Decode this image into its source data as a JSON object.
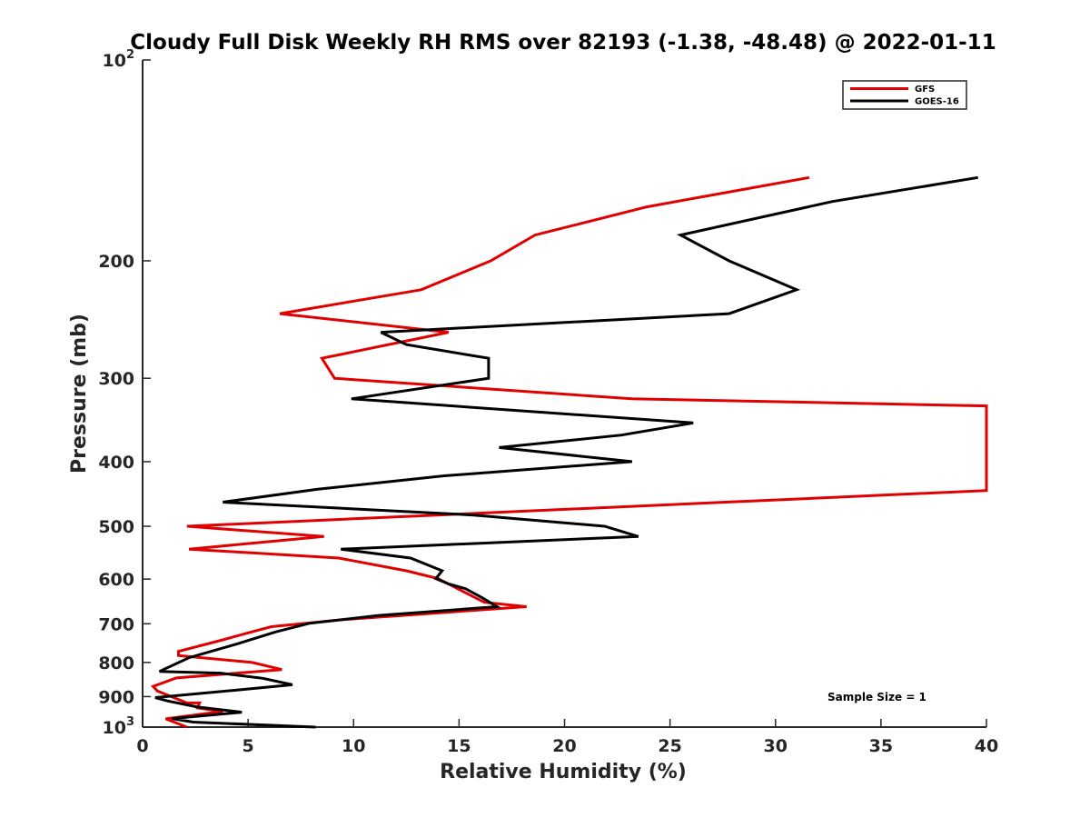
{
  "chart_data": {
    "type": "line",
    "title": "Cloudy Full Disk Weekly RH RMS over 82193 (-1.38, -48.48) @ 2022-01-11",
    "xlabel": "Relative Humidity (%)",
    "ylabel": "Pressure (mb)",
    "xlim": [
      0,
      40
    ],
    "ylim": [
      100,
      1000
    ],
    "y_scale": "log",
    "y_reversed": true,
    "grid": false,
    "legend_position": "top-right",
    "x_ticks": [
      "0",
      "5",
      "10",
      "15",
      "20",
      "25",
      "30",
      "35",
      "40"
    ],
    "y_ticks": [
      {
        "value": 100,
        "base": "10",
        "exp": "2"
      },
      {
        "value": 200,
        "label": "200"
      },
      {
        "value": 300,
        "label": "300"
      },
      {
        "value": 400,
        "label": "400"
      },
      {
        "value": 500,
        "label": "500"
      },
      {
        "value": 600,
        "label": "600"
      },
      {
        "value": 700,
        "label": "700"
      },
      {
        "value": 800,
        "label": "800"
      },
      {
        "value": 900,
        "label": "900"
      },
      {
        "value": 1000,
        "base": "10",
        "exp": "3"
      }
    ],
    "annotation": "Sample Size = 1",
    "series": [
      {
        "name": "GFS",
        "color": "#e00000",
        "points": [
          [
            31.6,
            150
          ],
          [
            23.9,
            166
          ],
          [
            18.6,
            183
          ],
          [
            16.5,
            200
          ],
          [
            13.2,
            221
          ],
          [
            6.5,
            240
          ],
          [
            14.5,
            256
          ],
          [
            8.5,
            280
          ],
          [
            9.1,
            300
          ],
          [
            23.2,
            322
          ],
          [
            40,
            330
          ],
          [
            40,
            442
          ],
          [
            2.1,
            500
          ],
          [
            8.6,
            518
          ],
          [
            2.2,
            541
          ],
          [
            9.3,
            558
          ],
          [
            12.5,
            583
          ],
          [
            14,
            599
          ],
          [
            16.2,
            650
          ],
          [
            18.2,
            660
          ],
          [
            9.5,
            690
          ],
          [
            6.1,
            707
          ],
          [
            5.3,
            718
          ],
          [
            3.8,
            740
          ],
          [
            1.7,
            770
          ],
          [
            1.7,
            781
          ],
          [
            5.2,
            800
          ],
          [
            6.6,
            820
          ],
          [
            1.6,
            844
          ],
          [
            0.5,
            869
          ],
          [
            0.7,
            883
          ],
          [
            2.1,
            920
          ],
          [
            2.7,
            920
          ],
          [
            2.6,
            936
          ],
          [
            3.8,
            947
          ],
          [
            1.1,
            972
          ],
          [
            2.1,
            1000
          ]
        ]
      },
      {
        "name": "GOES-16",
        "color": "#000000",
        "points": [
          [
            39.6,
            150
          ],
          [
            32.7,
            163
          ],
          [
            25.5,
            183
          ],
          [
            27.8,
            200
          ],
          [
            31,
            221
          ],
          [
            27.8,
            240
          ],
          [
            11.3,
            256
          ],
          [
            12.5,
            267
          ],
          [
            16.4,
            280
          ],
          [
            16.4,
            300
          ],
          [
            9.9,
            322
          ],
          [
            26.1,
            350
          ],
          [
            22.7,
            365
          ],
          [
            16.9,
            381
          ],
          [
            23.2,
            400
          ],
          [
            14.3,
            420
          ],
          [
            8.3,
            440
          ],
          [
            3.8,
            460
          ],
          [
            15.7,
            481
          ],
          [
            21.9,
            500
          ],
          [
            23.5,
            518
          ],
          [
            9.4,
            541
          ],
          [
            12.7,
            558
          ],
          [
            14.2,
            583
          ],
          [
            13.9,
            599
          ],
          [
            14.5,
            610
          ],
          [
            15.3,
            620
          ],
          [
            16.1,
            640
          ],
          [
            16.8,
            660
          ],
          [
            11.2,
            680
          ],
          [
            7.9,
            699
          ],
          [
            6.3,
            720
          ],
          [
            4.5,
            750
          ],
          [
            2.2,
            787
          ],
          [
            0.8,
            825
          ],
          [
            3.7,
            830
          ],
          [
            5.7,
            845
          ],
          [
            7.1,
            864
          ],
          [
            4.3,
            881
          ],
          [
            0.6,
            903
          ],
          [
            1.2,
            914
          ],
          [
            2.6,
            933
          ],
          [
            4.7,
            950
          ],
          [
            1.4,
            971
          ],
          [
            2.4,
            983
          ],
          [
            8.2,
            1000
          ]
        ]
      }
    ]
  }
}
